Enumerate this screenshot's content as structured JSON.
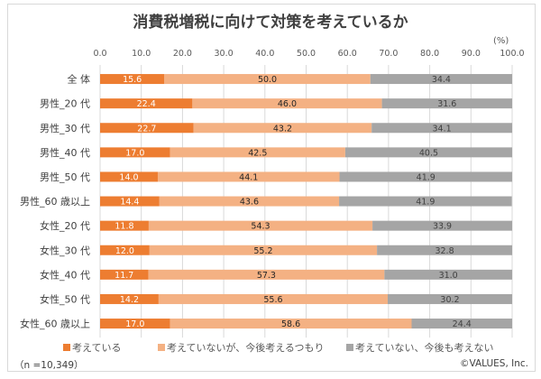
{
  "chart_data": {
    "type": "bar",
    "orientation": "horizontal",
    "stacked": true,
    "title": "消費税増税に向けて対策を考えているか",
    "unit_label": "(%)",
    "xlim": [
      0,
      100
    ],
    "xticks": [
      "0.0",
      "10.0",
      "20.0",
      "30.0",
      "40.0",
      "50.0",
      "60.0",
      "70.0",
      "80.0",
      "90.0",
      "100.0"
    ],
    "grid": true,
    "legend_position": "bottom",
    "categories": [
      "全 体",
      "男性_20 代",
      "男性_30 代",
      "男性_40 代",
      "男性_50 代",
      "男性_60 歳以上",
      "女性_20 代",
      "女性_30 代",
      "女性_40 代",
      "女性_50 代",
      "女性_60 歳以上"
    ],
    "series": [
      {
        "name": "考えている",
        "color": "#ed7d31",
        "label_color": "#ffffff",
        "values": [
          15.6,
          22.4,
          22.7,
          17.0,
          14.0,
          14.4,
          11.8,
          12.0,
          11.7,
          14.2,
          17.0
        ]
      },
      {
        "name": "考えていないが、今後考えるつもり",
        "color": "#f4b183",
        "label_color": "#262626",
        "values": [
          50.0,
          46.0,
          43.2,
          42.5,
          44.1,
          43.6,
          54.3,
          55.2,
          57.3,
          55.6,
          58.6
        ]
      },
      {
        "name": "考えていない、今後も考えない",
        "color": "#a5a5a5",
        "label_color": "#404040",
        "values": [
          34.4,
          31.6,
          34.1,
          40.5,
          41.9,
          41.9,
          33.9,
          32.8,
          31.0,
          30.2,
          24.4
        ]
      }
    ]
  },
  "footer": {
    "sample_note": "（n =10,349）",
    "copyright": "©VALUES, Inc."
  }
}
